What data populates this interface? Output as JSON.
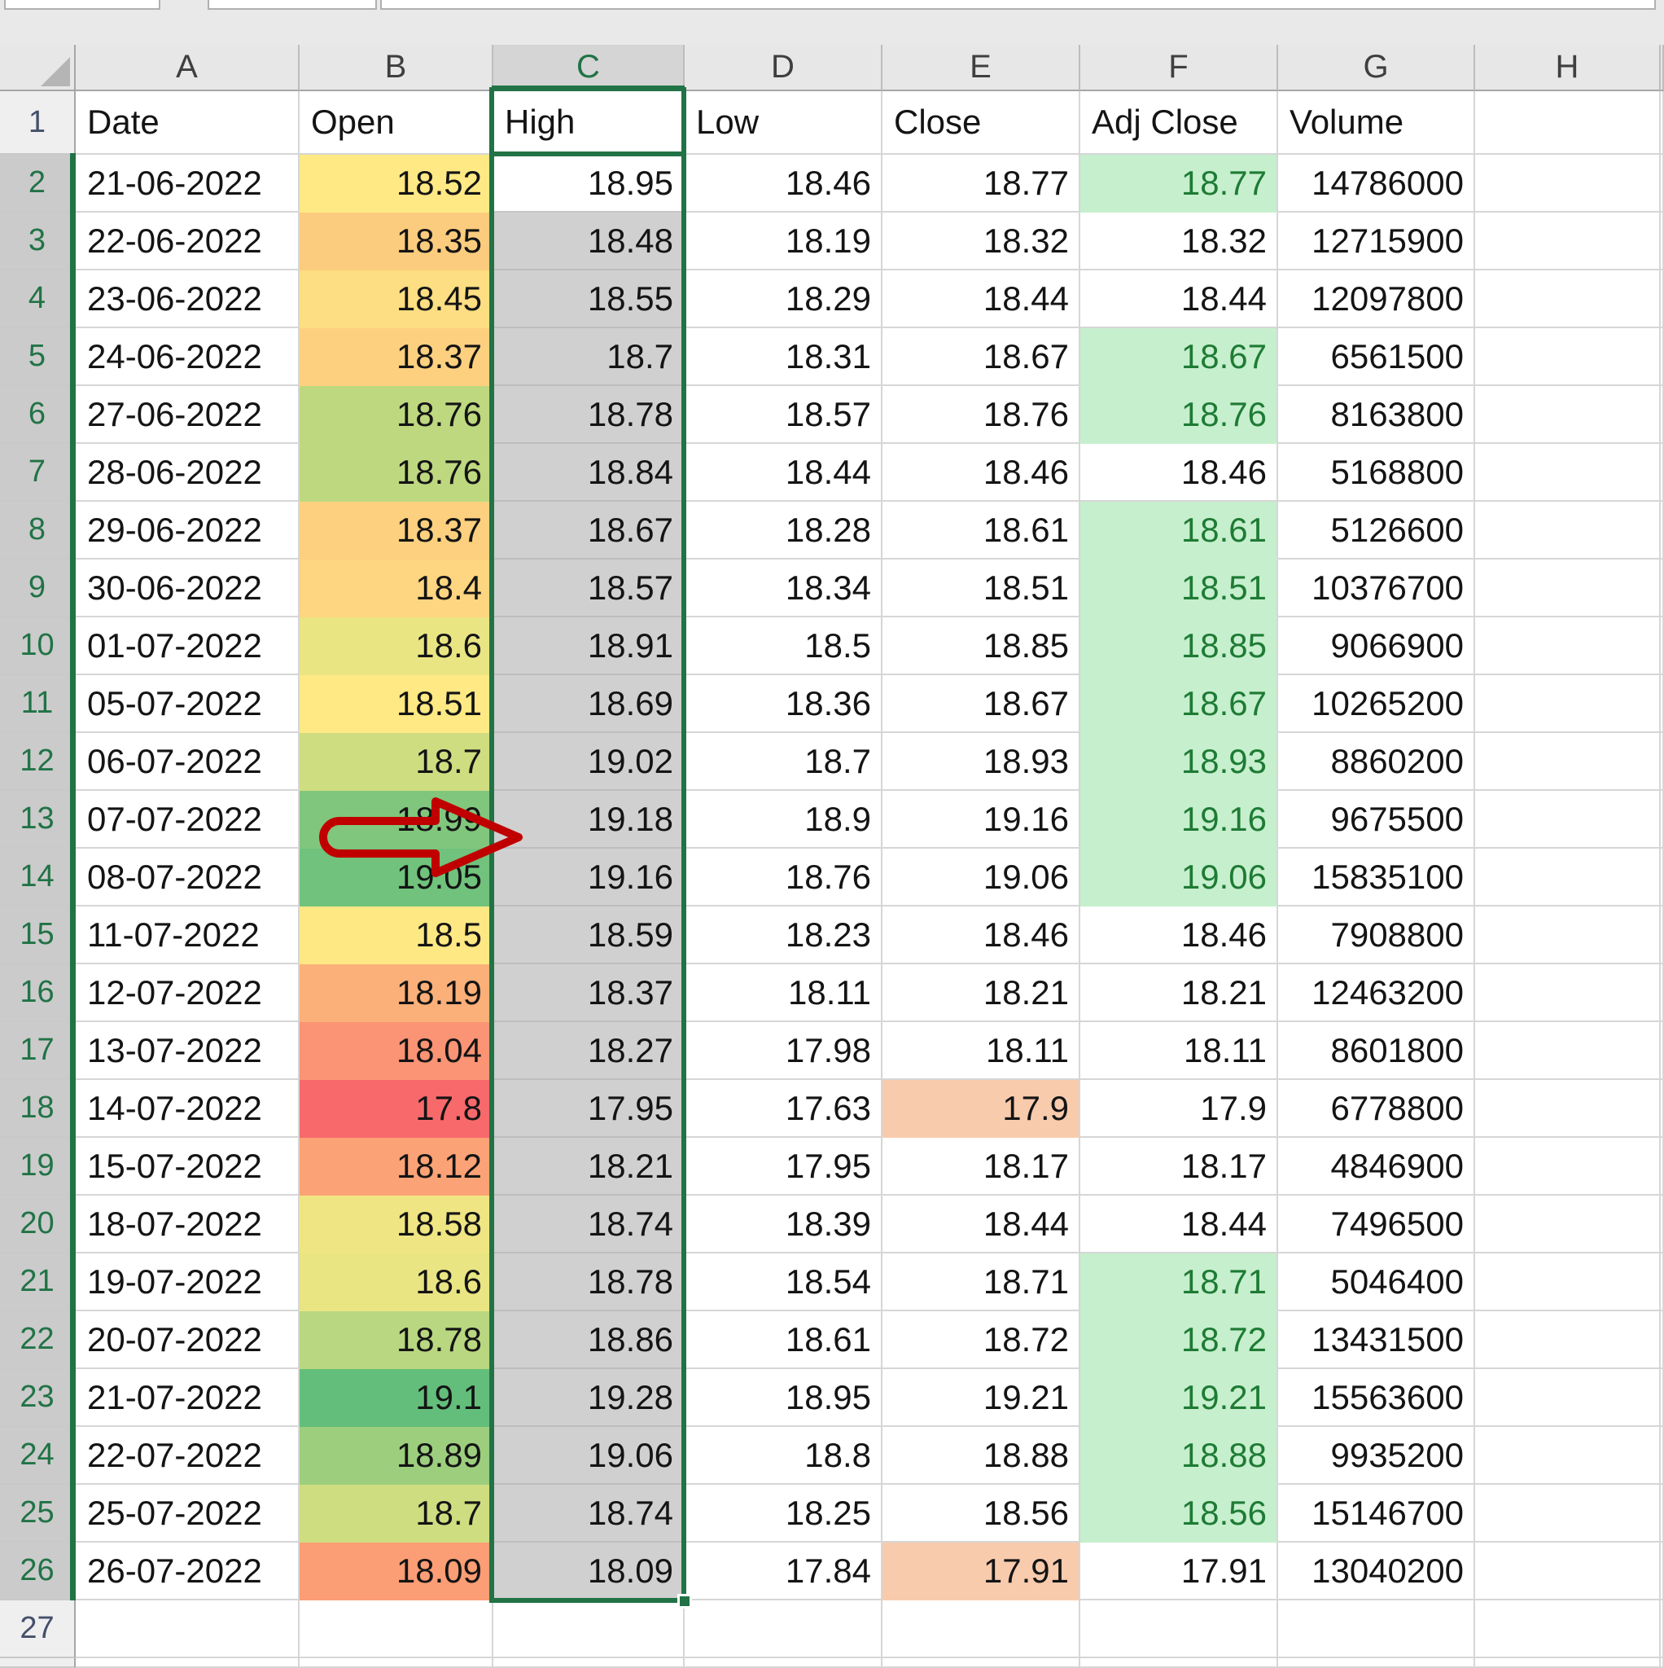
{
  "window": {
    "app": "Excel worksheet"
  },
  "colors": {
    "accent_green": "#217346",
    "header_fill": "#e7e7e7",
    "selected_header_fill": "#d5d5d5",
    "selection_fill": "#d0d0d0",
    "gridline": "#d6d6d6",
    "good_fill": "#c6efce",
    "good_text": "#1e7b34",
    "neutral_fill": "#f8cbad",
    "arrow_red": "#c00000"
  },
  "column_letters": [
    "A",
    "B",
    "C",
    "D",
    "E",
    "F",
    "G",
    "H"
  ],
  "selection": {
    "column_letter": "C",
    "first_row": 2,
    "last_row": 26,
    "active_cell": "C2"
  },
  "annotation": {
    "shape": "red-outline-arrow",
    "points_at": "B13"
  },
  "table": {
    "headers": [
      "Date",
      "Open",
      "High",
      "Low",
      "Close",
      "Adj Close",
      "Volume"
    ],
    "trailing_row_number": "27",
    "rows": [
      {
        "n": "2",
        "date": "21-06-2022",
        "open": "18.52",
        "high": "18.95",
        "low": "18.46",
        "close": "18.77",
        "adj_close": "18.77",
        "volume": "14786000",
        "open_color": "#FFE984",
        "adj_good": true,
        "close_neutral": false
      },
      {
        "n": "3",
        "date": "22-06-2022",
        "open": "18.35",
        "high": "18.48",
        "low": "18.19",
        "close": "18.32",
        "adj_close": "18.32",
        "volume": "12715900",
        "open_color": "#FCCC7E",
        "adj_good": false,
        "close_neutral": false
      },
      {
        "n": "4",
        "date": "23-06-2022",
        "open": "18.45",
        "high": "18.55",
        "low": "18.29",
        "close": "18.44",
        "adj_close": "18.44",
        "volume": "12097800",
        "open_color": "#FEDE82",
        "adj_good": false,
        "close_neutral": false
      },
      {
        "n": "5",
        "date": "24-06-2022",
        "open": "18.37",
        "high": "18.7",
        "low": "18.31",
        "close": "18.67",
        "adj_close": "18.67",
        "volume": "6561500",
        "open_color": "#FDD07F",
        "adj_good": true,
        "close_neutral": false
      },
      {
        "n": "6",
        "date": "27-06-2022",
        "open": "18.76",
        "high": "18.78",
        "low": "18.57",
        "close": "18.76",
        "adj_close": "18.76",
        "volume": "8163800",
        "open_color": "#BED880",
        "adj_good": true,
        "close_neutral": false
      },
      {
        "n": "7",
        "date": "28-06-2022",
        "open": "18.76",
        "high": "18.84",
        "low": "18.44",
        "close": "18.46",
        "adj_close": "18.46",
        "volume": "5168800",
        "open_color": "#BED880",
        "adj_good": false,
        "close_neutral": false
      },
      {
        "n": "8",
        "date": "29-06-2022",
        "open": "18.37",
        "high": "18.67",
        "low": "18.28",
        "close": "18.61",
        "adj_close": "18.61",
        "volume": "5126600",
        "open_color": "#FDD07F",
        "adj_good": true,
        "close_neutral": false
      },
      {
        "n": "9",
        "date": "30-06-2022",
        "open": "18.4",
        "high": "18.57",
        "low": "18.34",
        "close": "18.51",
        "adj_close": "18.51",
        "volume": "10376700",
        "open_color": "#FED580",
        "adj_good": true,
        "close_neutral": false
      },
      {
        "n": "10",
        "date": "01-07-2022",
        "open": "18.6",
        "high": "18.91",
        "low": "18.5",
        "close": "18.85",
        "adj_close": "18.85",
        "volume": "9066900",
        "open_color": "#E9E583",
        "adj_good": true,
        "close_neutral": false
      },
      {
        "n": "11",
        "date": "05-07-2022",
        "open": "18.51",
        "high": "18.69",
        "low": "18.36",
        "close": "18.67",
        "adj_close": "18.67",
        "volume": "10265200",
        "open_color": "#FEE984",
        "adj_good": true,
        "close_neutral": false
      },
      {
        "n": "12",
        "date": "06-07-2022",
        "open": "18.7",
        "high": "19.02",
        "low": "18.7",
        "close": "18.93",
        "adj_close": "18.93",
        "volume": "8860200",
        "open_color": "#CFDD81",
        "adj_good": true,
        "close_neutral": false
      },
      {
        "n": "13",
        "date": "07-07-2022",
        "open": "18.99",
        "high": "19.18",
        "low": "18.9",
        "close": "19.16",
        "adj_close": "19.16",
        "volume": "9675500",
        "open_color": "#81C67D",
        "adj_good": true,
        "close_neutral": false
      },
      {
        "n": "14",
        "date": "08-07-2022",
        "open": "19.05",
        "high": "19.16",
        "low": "18.76",
        "close": "19.06",
        "adj_close": "19.06",
        "volume": "15835100",
        "open_color": "#70C27C",
        "adj_good": true,
        "close_neutral": false
      },
      {
        "n": "15",
        "date": "11-07-2022",
        "open": "18.5",
        "high": "18.59",
        "low": "18.23",
        "close": "18.46",
        "adj_close": "18.46",
        "volume": "7908800",
        "open_color": "#FEE883",
        "adj_good": false,
        "close_neutral": false
      },
      {
        "n": "16",
        "date": "12-07-2022",
        "open": "18.19",
        "high": "18.37",
        "low": "18.11",
        "close": "18.21",
        "adj_close": "18.21",
        "volume": "12463200",
        "open_color": "#FCB079",
        "adj_good": false,
        "close_neutral": false
      },
      {
        "n": "17",
        "date": "13-07-2022",
        "open": "18.04",
        "high": "18.27",
        "low": "17.98",
        "close": "18.11",
        "adj_close": "18.11",
        "volume": "8601800",
        "open_color": "#FA9474",
        "adj_good": false,
        "close_neutral": false
      },
      {
        "n": "18",
        "date": "14-07-2022",
        "open": "17.8",
        "high": "17.95",
        "low": "17.63",
        "close": "17.9",
        "adj_close": "17.9",
        "volume": "6778800",
        "open_color": "#F8696B",
        "adj_good": false,
        "close_neutral": true
      },
      {
        "n": "19",
        "date": "15-07-2022",
        "open": "18.12",
        "high": "18.21",
        "low": "17.95",
        "close": "18.17",
        "adj_close": "18.17",
        "volume": "4846900",
        "open_color": "#FBA376",
        "adj_good": false,
        "close_neutral": false
      },
      {
        "n": "20",
        "date": "18-07-2022",
        "open": "18.58",
        "high": "18.74",
        "low": "18.39",
        "close": "18.44",
        "adj_close": "18.44",
        "volume": "7496500",
        "open_color": "#EFE683",
        "adj_good": false,
        "close_neutral": false
      },
      {
        "n": "21",
        "date": "19-07-2022",
        "open": "18.6",
        "high": "18.78",
        "low": "18.54",
        "close": "18.71",
        "adj_close": "18.71",
        "volume": "5046400",
        "open_color": "#E9E583",
        "adj_good": true,
        "close_neutral": false
      },
      {
        "n": "22",
        "date": "20-07-2022",
        "open": "18.78",
        "high": "18.86",
        "low": "18.61",
        "close": "18.72",
        "adj_close": "18.72",
        "volume": "13431500",
        "open_color": "#B9D780",
        "adj_good": true,
        "close_neutral": false
      },
      {
        "n": "23",
        "date": "21-07-2022",
        "open": "19.1",
        "high": "19.28",
        "low": "18.95",
        "close": "19.21",
        "adj_close": "19.21",
        "volume": "15563600",
        "open_color": "#63BE7B",
        "adj_good": true,
        "close_neutral": false
      },
      {
        "n": "24",
        "date": "22-07-2022",
        "open": "18.89",
        "high": "19.06",
        "low": "18.8",
        "close": "18.88",
        "adj_close": "18.88",
        "volume": "9935200",
        "open_color": "#9CCE7E",
        "adj_good": true,
        "close_neutral": false
      },
      {
        "n": "25",
        "date": "25-07-2022",
        "open": "18.7",
        "high": "18.74",
        "low": "18.25",
        "close": "18.56",
        "adj_close": "18.56",
        "volume": "15146700",
        "open_color": "#CFDD81",
        "adj_good": true,
        "close_neutral": false
      },
      {
        "n": "26",
        "date": "26-07-2022",
        "open": "18.09",
        "high": "18.09",
        "low": "17.84",
        "close": "17.91",
        "adj_close": "17.91",
        "volume": "13040200",
        "open_color": "#FB9D75",
        "adj_good": false,
        "close_neutral": true
      }
    ]
  }
}
